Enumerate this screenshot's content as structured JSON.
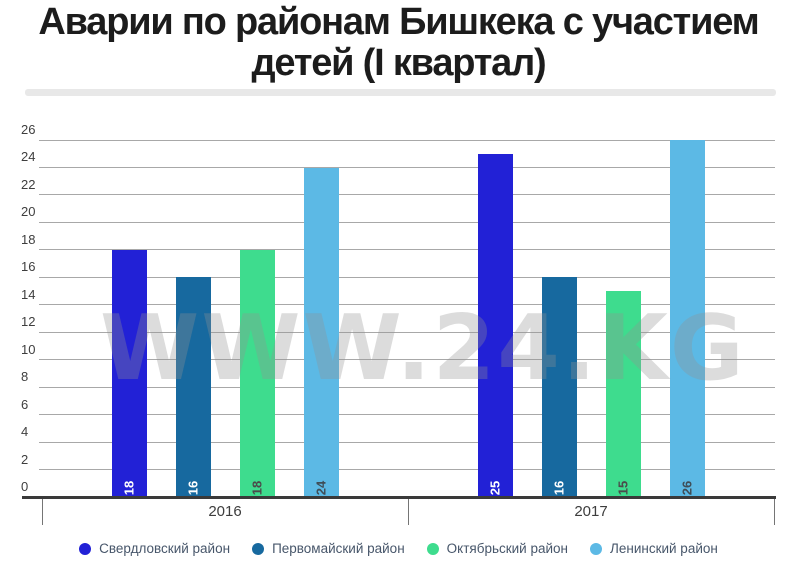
{
  "title": {
    "line1": "Аварии по районам Бишкека с участием",
    "line2": "детей (I квартал)"
  },
  "watermark": {
    "text": "WWW.24.KG"
  },
  "chart_data": {
    "type": "bar",
    "title": "Аварии по районам Бишкека с участием детей (I квартал)",
    "categories": [
      "2016",
      "2017"
    ],
    "series": [
      {
        "name": "Свердловский район",
        "color": "#2221d6",
        "label_color": "#ffffff",
        "values": [
          18,
          25
        ]
      },
      {
        "name": "Первомайский район",
        "color": "#17699f",
        "label_color": "#ffffff",
        "values": [
          16,
          16
        ]
      },
      {
        "name": "Октябрьский район",
        "color": "#3edc8e",
        "label_color": "#4b4b4b",
        "values": [
          18,
          15
        ]
      },
      {
        "name": "Ленинский район",
        "color": "#5cb9e5",
        "label_color": "#3f4d57",
        "values": [
          24,
          26
        ]
      }
    ],
    "xlabel": "",
    "ylabel": "",
    "ylim": [
      0,
      26
    ],
    "ytick_step": 2,
    "grid": true,
    "legend_position": "bottom"
  },
  "axis": {
    "grid_color": "#a8a8a8",
    "line_color": "#3a3a3a",
    "tick_color": "#757575",
    "y_label_color": "#3e3e3e",
    "cat_label_color": "#3d3d3d"
  }
}
